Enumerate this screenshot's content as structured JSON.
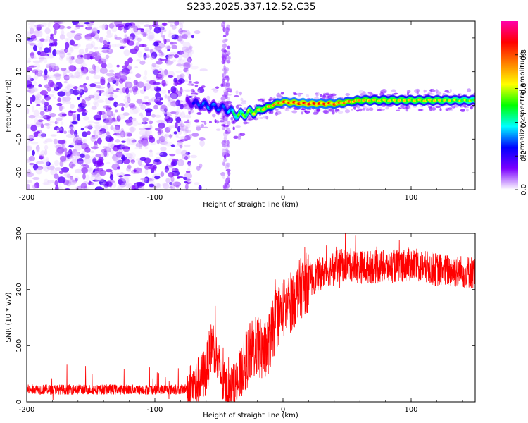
{
  "title": "S233.2025.337.12.52.C35",
  "chart_data": [
    {
      "type": "heatmap",
      "xlabel": "Height of straight line (km)",
      "ylabel": "Frequency (Hz)",
      "xlim": [
        -200,
        150
      ],
      "ylim": [
        -25,
        25
      ],
      "xticks": [
        -200,
        -100,
        0,
        100
      ],
      "yticks": [
        -20,
        -10,
        0,
        10,
        20
      ],
      "colorbar": {
        "label": "Normalized spectral amplitude",
        "range": [
          0.0,
          1.0
        ],
        "ticks": [
          "0.0",
          "0.2",
          "0.4",
          "0.6",
          "0.8"
        ],
        "colors": [
          "#ffffff",
          "#7b00ff",
          "#0000ff",
          "#00ffff",
          "#00ff00",
          "#ffff00",
          "#ff8000",
          "#ff0000",
          "#ff00aa"
        ]
      },
      "ridge": {
        "description": "frequency of peak amplitude vs height",
        "x": [
          -75,
          -60,
          -45,
          -35,
          -25,
          -15,
          -5,
          0,
          20,
          40,
          60,
          80,
          100,
          120,
          150
        ],
        "y": [
          1.0,
          0.0,
          -1.0,
          -3.0,
          -2.0,
          -1.0,
          0.5,
          1.0,
          0.5,
          0.5,
          1.5,
          1.5,
          1.5,
          1.5,
          1.5
        ],
        "amplitude": [
          0.2,
          0.35,
          0.3,
          0.55,
          0.65,
          0.7,
          0.8,
          0.85,
          0.9,
          0.85,
          0.75,
          0.7,
          0.7,
          0.7,
          0.6
        ]
      }
    },
    {
      "type": "line",
      "xlabel": "Height of straight line (km)",
      "ylabel": "SNR (10 * v/v)",
      "xlim": [
        -200,
        150
      ],
      "ylim": [
        0,
        300
      ],
      "xticks": [
        -200,
        -100,
        0,
        100
      ],
      "yticks": [
        0,
        100,
        200,
        300
      ],
      "series": [
        {
          "name": "SNR",
          "color": "#ff0000",
          "x": [
            -200,
            -150,
            -100,
            -80,
            -70,
            -60,
            -55,
            -50,
            -45,
            -40,
            -35,
            -30,
            -25,
            -20,
            -15,
            -10,
            -5,
            0,
            5,
            10,
            15,
            20,
            30,
            40,
            50,
            60,
            80,
            100,
            120,
            150
          ],
          "y": [
            22,
            22,
            22,
            22,
            25,
            55,
            110,
            60,
            20,
            20,
            35,
            70,
            90,
            100,
            85,
            110,
            150,
            165,
            175,
            190,
            205,
            215,
            230,
            240,
            245,
            240,
            240,
            245,
            235,
            230
          ]
        }
      ]
    }
  ]
}
